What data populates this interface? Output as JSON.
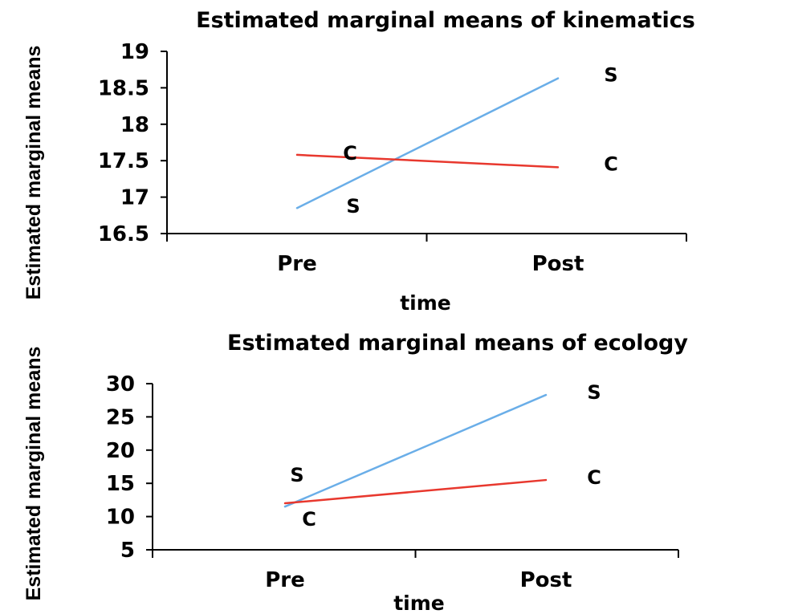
{
  "chart_data": [
    {
      "type": "line",
      "title": "Estimated marginal means of kinematics",
      "xlabel": "time",
      "ylabel": "Estimated marginal means",
      "categories": [
        "Pre",
        "Post"
      ],
      "ylim": [
        16.5,
        19
      ],
      "yticks": [
        "16.5",
        "17",
        "17.5",
        "18",
        "18.5",
        "19"
      ],
      "grid": false,
      "series": [
        {
          "name": "S",
          "color": "#6aaee8",
          "values": [
            16.85,
            18.63
          ]
        },
        {
          "name": "C",
          "color": "#e8382e",
          "values": [
            17.58,
            17.41
          ]
        }
      ]
    },
    {
      "type": "line",
      "title": "Estimated marginal means of ecology",
      "xlabel": "time",
      "ylabel": "Estimated marginal means",
      "categories": [
        "Pre",
        "Post"
      ],
      "ylim": [
        5,
        30
      ],
      "yticks": [
        "5",
        "10",
        "15",
        "20",
        "25",
        "30"
      ],
      "grid": false,
      "series": [
        {
          "name": "S",
          "color": "#6aaee8",
          "values": [
            11.5,
            28.3
          ]
        },
        {
          "name": "C",
          "color": "#e8382e",
          "values": [
            12.0,
            15.5
          ]
        }
      ]
    }
  ]
}
